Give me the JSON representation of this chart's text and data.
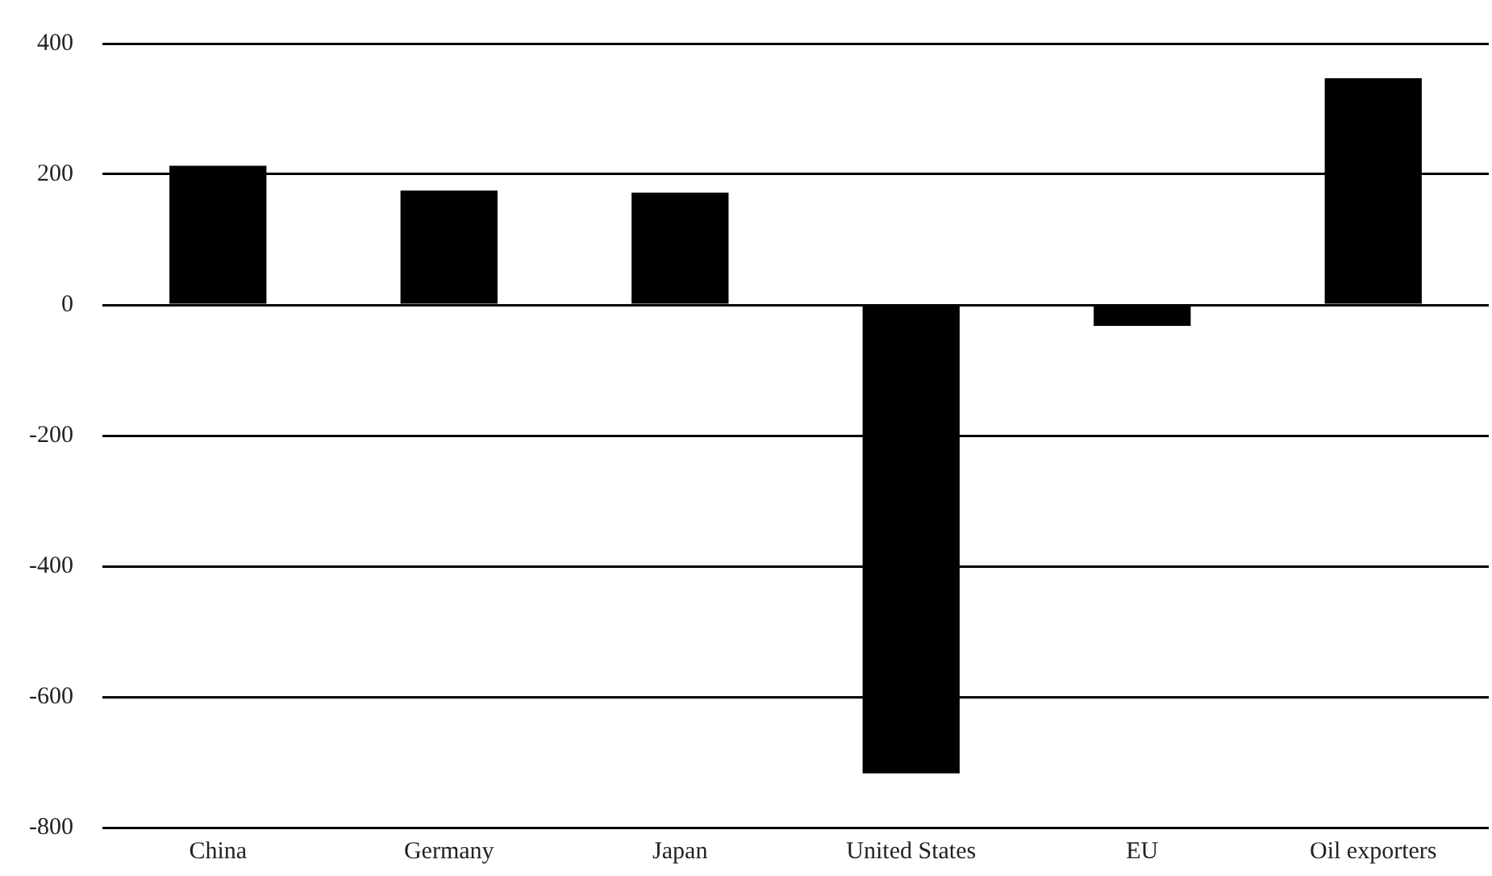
{
  "chart_data": {
    "type": "bar",
    "categories": [
      "China",
      "Germany",
      "Japan",
      "United States",
      "EU",
      "Oil exporters"
    ],
    "values": [
      213,
      175,
      172,
      -717,
      -32,
      347
    ],
    "color": "#000000",
    "ylim": [
      -800,
      400
    ],
    "yticks": [
      -800,
      -600,
      -400,
      -200,
      0,
      200,
      400
    ],
    "grid": "y",
    "legend": false
  }
}
